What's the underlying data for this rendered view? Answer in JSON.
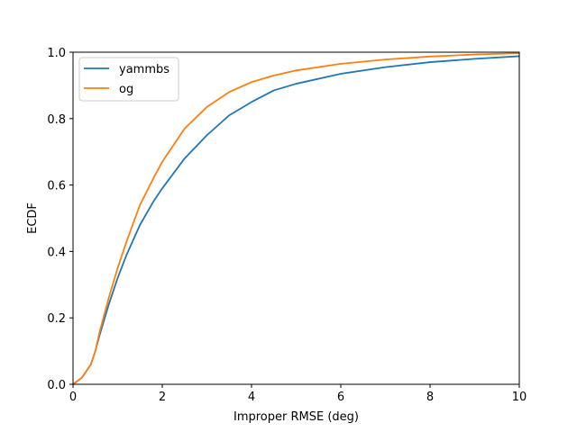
{
  "chart_data": {
    "type": "line",
    "title": "",
    "xlabel": "Improper RMSE (deg)",
    "ylabel": "ECDF",
    "xlim": [
      0,
      10
    ],
    "ylim": [
      0.0,
      1.0
    ],
    "xticks": [
      0,
      2,
      4,
      6,
      8,
      10
    ],
    "xtick_labels": [
      "0",
      "2",
      "4",
      "6",
      "8",
      "10"
    ],
    "yticks": [
      0.0,
      0.2,
      0.4,
      0.6,
      0.8,
      1.0
    ],
    "ytick_labels": [
      "0.0",
      "0.2",
      "0.4",
      "0.6",
      "0.8",
      "1.0"
    ],
    "grid": false,
    "legend_position": "upper-left",
    "series": [
      {
        "name": "yammbs",
        "color": "#1f77b4",
        "x": [
          0,
          0.2,
          0.4,
          0.5,
          0.6,
          0.8,
          1.0,
          1.2,
          1.5,
          1.8,
          2.0,
          2.5,
          3.0,
          3.5,
          4.0,
          4.5,
          5.0,
          6.0,
          7.0,
          8.0,
          9.0,
          10.0
        ],
        "y": [
          0.0,
          0.02,
          0.06,
          0.1,
          0.15,
          0.24,
          0.32,
          0.39,
          0.48,
          0.55,
          0.59,
          0.68,
          0.75,
          0.81,
          0.85,
          0.885,
          0.905,
          0.935,
          0.955,
          0.97,
          0.98,
          0.988
        ]
      },
      {
        "name": "og",
        "color": "#ff7f0e",
        "x": [
          0,
          0.2,
          0.4,
          0.5,
          0.6,
          0.8,
          1.0,
          1.2,
          1.5,
          1.8,
          2.0,
          2.5,
          3.0,
          3.5,
          4.0,
          4.5,
          5.0,
          6.0,
          7.0,
          8.0,
          9.0,
          10.0
        ],
        "y": [
          0.0,
          0.02,
          0.06,
          0.1,
          0.16,
          0.26,
          0.35,
          0.43,
          0.54,
          0.62,
          0.67,
          0.77,
          0.835,
          0.88,
          0.91,
          0.93,
          0.945,
          0.965,
          0.978,
          0.987,
          0.993,
          0.997
        ]
      }
    ]
  }
}
